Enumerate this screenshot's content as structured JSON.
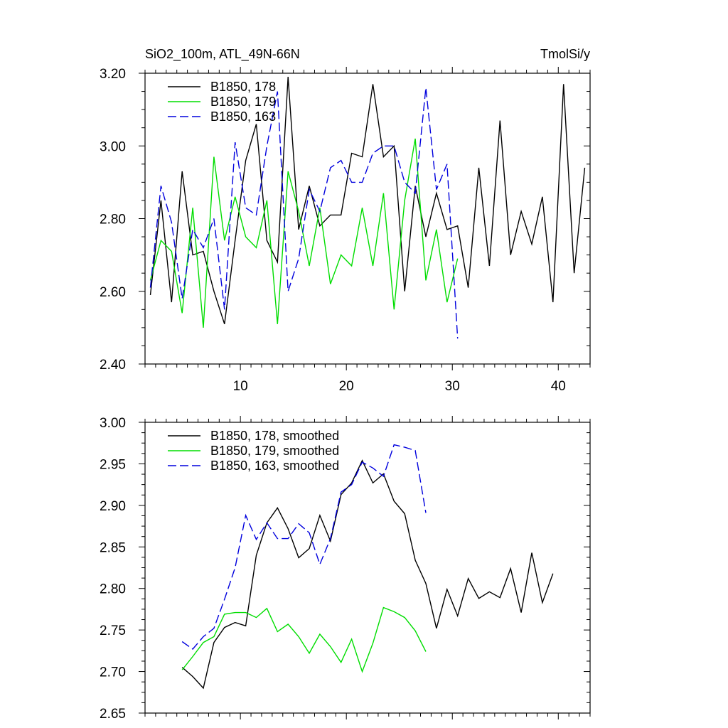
{
  "chart_data": [
    {
      "type": "line",
      "title_left": "SiO2_100m, ATL_49N-66N",
      "title_right": "TmolSi/y",
      "xlim": [
        1,
        43
      ],
      "ylim": [
        2.4,
        3.2
      ],
      "xticks": [
        10,
        20,
        30,
        40
      ],
      "xtick_labels": [
        "10",
        "20",
        "30",
        "40"
      ],
      "yticks": [
        2.4,
        2.6,
        2.8,
        3.0,
        3.2
      ],
      "ytick_labels": [
        "2.40",
        "2.60",
        "2.80",
        "3.00",
        "3.20"
      ],
      "legend_position": "top-left",
      "series": [
        {
          "name": "B1850, 178",
          "color": "#000000",
          "dash": "solid",
          "x": [
            1.5,
            2.5,
            3.5,
            4.5,
            5.5,
            6.5,
            7.5,
            8.5,
            9.5,
            10.5,
            11.5,
            12.5,
            13.5,
            14.5,
            15.5,
            16.5,
            17.5,
            18.5,
            19.5,
            20.5,
            21.5,
            22.5,
            23.5,
            24.5,
            25.5,
            26.5,
            27.5,
            28.5,
            29.5,
            30.5,
            31.5,
            32.5,
            33.5,
            34.5,
            35.5,
            36.5,
            37.5,
            38.5,
            39.5,
            40.5,
            41.5,
            42.5
          ],
          "values": [
            2.59,
            2.85,
            2.57,
            2.93,
            2.7,
            2.71,
            2.6,
            2.51,
            2.74,
            2.96,
            3.06,
            2.74,
            2.68,
            3.19,
            2.77,
            2.89,
            2.78,
            2.81,
            2.81,
            2.98,
            2.97,
            3.17,
            2.97,
            3.0,
            2.6,
            2.89,
            2.75,
            2.87,
            2.77,
            2.78,
            2.61,
            2.94,
            2.67,
            3.07,
            2.7,
            2.82,
            2.73,
            2.86,
            2.57,
            3.17,
            2.65,
            2.94
          ]
        },
        {
          "name": "B1850, 179",
          "color": "#00dd00",
          "dash": "solid",
          "x": [
            1.5,
            2.5,
            3.5,
            4.5,
            5.5,
            6.5,
            7.5,
            8.5,
            9.5,
            10.5,
            11.5,
            12.5,
            13.5,
            14.5,
            15.5,
            16.5,
            17.5,
            18.5,
            19.5,
            20.5,
            21.5,
            22.5,
            23.5,
            24.5,
            25.5,
            26.5,
            27.5,
            28.5,
            29.5,
            30.5
          ],
          "values": [
            2.63,
            2.74,
            2.71,
            2.54,
            2.83,
            2.5,
            2.97,
            2.74,
            2.86,
            2.75,
            2.72,
            2.85,
            2.51,
            2.93,
            2.82,
            2.67,
            2.83,
            2.62,
            2.7,
            2.67,
            2.83,
            2.67,
            2.87,
            2.55,
            2.85,
            3.02,
            2.63,
            2.77,
            2.57,
            2.69
          ]
        },
        {
          "name": "B1850, 163",
          "color": "#0000dd",
          "dash": "dashed",
          "x": [
            1.5,
            2.5,
            3.5,
            4.5,
            5.5,
            6.5,
            7.5,
            8.5,
            9.5,
            10.5,
            11.5,
            12.5,
            13.5,
            14.5,
            15.5,
            16.5,
            17.5,
            18.5,
            19.5,
            20.5,
            21.5,
            22.5,
            23.5,
            24.5,
            25.5,
            26.5,
            27.5,
            28.5,
            29.5,
            30.5
          ],
          "values": [
            2.61,
            2.89,
            2.79,
            2.58,
            2.77,
            2.72,
            2.8,
            2.55,
            3.01,
            2.83,
            2.81,
            3.0,
            3.15,
            2.6,
            2.69,
            2.88,
            2.82,
            2.94,
            2.96,
            2.9,
            2.9,
            2.98,
            3.0,
            3.0,
            2.9,
            2.87,
            3.16,
            2.88,
            2.95,
            2.47
          ]
        }
      ]
    },
    {
      "type": "line",
      "xlim": [
        1,
        43
      ],
      "ylim": [
        2.65,
        3.0
      ],
      "xticks": [
        10,
        20,
        30,
        40
      ],
      "xtick_labels": [
        "",
        "",
        "",
        ""
      ],
      "yticks": [
        2.65,
        2.7,
        2.75,
        2.8,
        2.85,
        2.9,
        2.95,
        3.0
      ],
      "ytick_labels": [
        "2.65",
        "2.70",
        "2.75",
        "2.80",
        "2.85",
        "2.90",
        "2.95",
        "3.00"
      ],
      "legend_position": "top-left",
      "series": [
        {
          "name": "B1850, 178, smoothed",
          "color": "#000000",
          "dash": "solid",
          "x": [
            4.5,
            5.5,
            6.5,
            7.5,
            8.5,
            9.5,
            10.5,
            11.5,
            12.5,
            13.5,
            14.5,
            15.5,
            16.5,
            17.5,
            18.5,
            19.5,
            20.5,
            21.5,
            22.5,
            23.5,
            24.5,
            25.5,
            26.5,
            27.5,
            28.5,
            29.5,
            30.5,
            31.5,
            32.5,
            33.5,
            34.5,
            35.5,
            36.5,
            37.5,
            38.5,
            39.5
          ],
          "values": [
            2.705,
            2.694,
            2.68,
            2.735,
            2.753,
            2.759,
            2.755,
            2.84,
            2.879,
            2.897,
            2.872,
            2.837,
            2.848,
            2.888,
            2.857,
            2.913,
            2.927,
            2.954,
            2.927,
            2.938,
            2.905,
            2.89,
            2.834,
            2.806,
            2.752,
            2.799,
            2.767,
            2.812,
            2.788,
            2.796,
            2.789,
            2.824,
            2.771,
            2.843,
            2.783,
            2.818
          ]
        },
        {
          "name": "B1850, 179, smoothed",
          "color": "#00dd00",
          "dash": "solid",
          "x": [
            4.5,
            5.5,
            6.5,
            7.5,
            8.5,
            9.5,
            10.5,
            11.5,
            12.5,
            13.5,
            14.5,
            15.5,
            16.5,
            17.5,
            18.5,
            19.5,
            20.5,
            21.5,
            22.5,
            23.5,
            24.5,
            25.5,
            26.5,
            27.5
          ],
          "values": [
            2.702,
            2.718,
            2.735,
            2.742,
            2.769,
            2.771,
            2.771,
            2.765,
            2.776,
            2.748,
            2.757,
            2.742,
            2.722,
            2.745,
            2.73,
            2.711,
            2.739,
            2.7,
            2.734,
            2.777,
            2.772,
            2.765,
            2.749,
            2.724
          ]
        },
        {
          "name": "B1850, 163, smoothed",
          "color": "#0000dd",
          "dash": "dashed",
          "x": [
            4.5,
            5.5,
            6.5,
            7.5,
            8.5,
            9.5,
            10.5,
            11.5,
            12.5,
            13.5,
            14.5,
            15.5,
            16.5,
            17.5,
            18.5,
            19.5,
            20.5,
            21.5,
            22.5,
            23.5,
            24.5,
            25.5,
            26.5,
            27.5
          ],
          "values": [
            2.736,
            2.727,
            2.742,
            2.752,
            2.787,
            2.825,
            2.888,
            2.859,
            2.879,
            2.86,
            2.86,
            2.878,
            2.867,
            2.829,
            2.86,
            2.916,
            2.925,
            2.952,
            2.945,
            2.935,
            2.973,
            2.97,
            2.966,
            2.891
          ]
        }
      ]
    }
  ]
}
